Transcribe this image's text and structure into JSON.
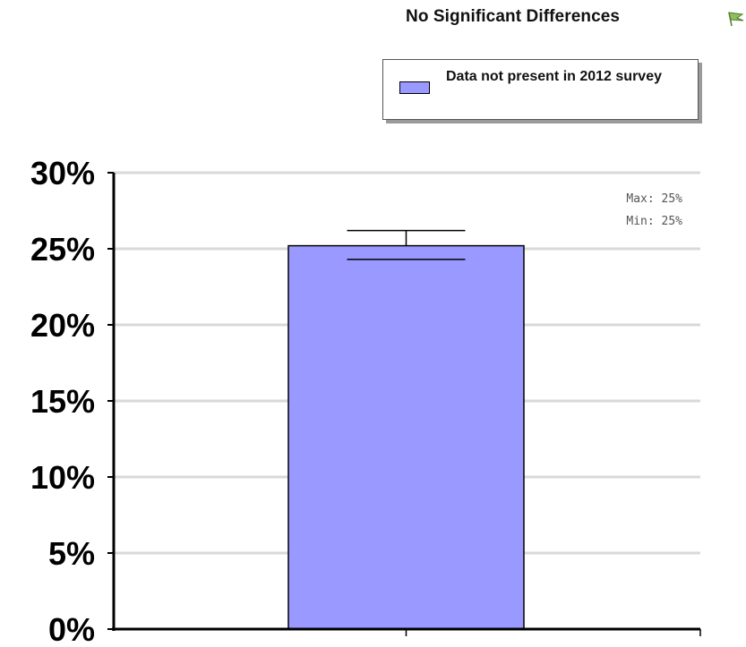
{
  "header": {
    "significance_text": "No Significant Differences",
    "significance_icon": "flag-icon"
  },
  "legend": {
    "label": "Data not present in 2012 survey",
    "color": "#9999ff"
  },
  "annotation": {
    "max_text": "Max: 25%",
    "min_text": "Min: 25%"
  },
  "colors": {
    "bar_fill": "#9999ff",
    "gridline": "#d9d9d9",
    "axis": "#000000"
  },
  "chart_data": {
    "type": "bar",
    "categories": [
      ""
    ],
    "series": [
      {
        "name": "Data not present in 2012 survey",
        "values": [
          25.2
        ],
        "error": {
          "upper": 26.2,
          "lower": 24.3
        }
      }
    ],
    "title": "",
    "xlabel": "",
    "ylabel": "",
    "ylim": [
      0,
      30
    ],
    "yticks": [
      0,
      5,
      10,
      15,
      20,
      25,
      30
    ],
    "ytick_labels": [
      "0%",
      "5%",
      "10%",
      "15%",
      "20%",
      "25%",
      "30%"
    ],
    "grid": true,
    "legend_position": "top-right"
  }
}
